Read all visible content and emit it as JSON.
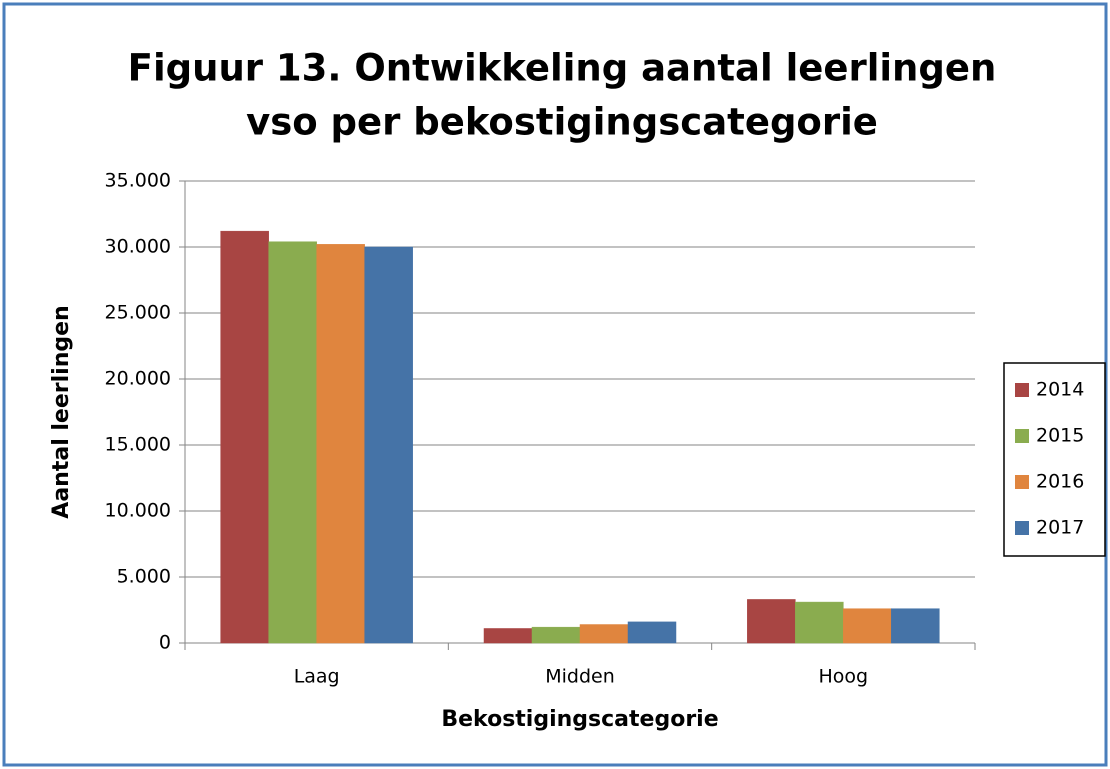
{
  "chart_data": {
    "type": "bar",
    "title": [
      "Figuur 13. Ontwikkeling aantal leerlingen",
      "vso per bekostigingscategorie"
    ],
    "xlabel": "Bekostigingscategorie",
    "ylabel": "Aantal leerlingen",
    "categories": [
      "Laag",
      "Midden",
      "Hoog"
    ],
    "series": [
      {
        "name": "2014",
        "color": "#a84543",
        "values": [
          31200,
          1100,
          3300
        ]
      },
      {
        "name": "2015",
        "color": "#8aac4f",
        "values": [
          30400,
          1200,
          3100
        ]
      },
      {
        "name": "2016",
        "color": "#e0853e",
        "values": [
          30200,
          1400,
          2600
        ]
      },
      {
        "name": "2017",
        "color": "#4573a7",
        "values": [
          30000,
          1600,
          2600
        ]
      }
    ],
    "ylim": [
      0,
      35000
    ],
    "yticks": [
      0,
      {
        "value": 5000,
        "label": "5.000"
      },
      {
        "value": 10000,
        "label": "10.000"
      },
      {
        "value": 15000,
        "label": "15.000"
      },
      {
        "value": 20000,
        "label": "20.000"
      },
      {
        "value": 25000,
        "label": "25.000"
      },
      {
        "value": 30000,
        "label": "30.000"
      },
      {
        "value": 35000,
        "label": "35.000"
      }
    ],
    "grid": true,
    "legend": "right"
  }
}
